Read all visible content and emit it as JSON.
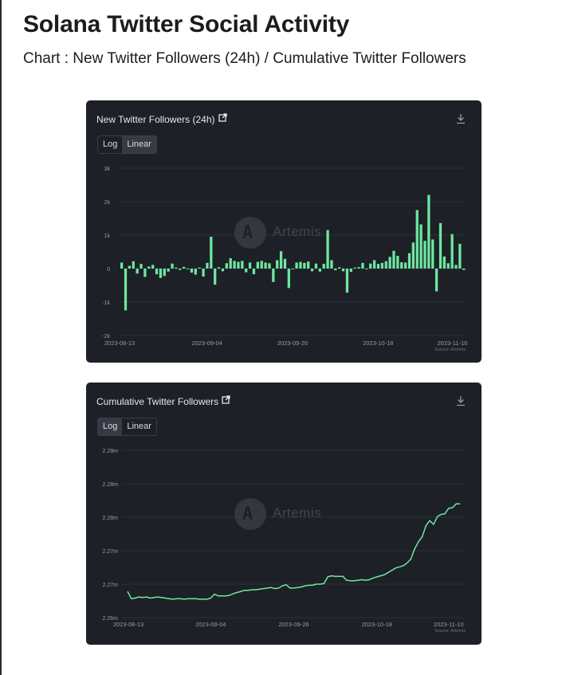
{
  "page": {
    "title": "Solana Twitter Social Activity",
    "subtitle": "Chart : New Twitter Followers (24h) / Cumulative Twitter Followers"
  },
  "colors": {
    "card_bg": "#1d2027",
    "series": "#6ee7a0",
    "grid": "#2c3038",
    "tick_text": "#9a9ca3"
  },
  "icons": [
    "external-link-icon",
    "download-icon",
    "artemis-logo-icon"
  ],
  "watermark": "Artemis",
  "chart_data": [
    {
      "type": "bar",
      "title": "New Twitter Followers (24h)",
      "scale_toggle": {
        "options": [
          "Log",
          "Linear"
        ],
        "selected": "Linear"
      },
      "ylim": [
        -2000,
        3000
      ],
      "y_ticks": [
        "3k",
        "2k",
        "1k",
        "0",
        "-1k",
        "-2k"
      ],
      "y_tick_values": [
        3000,
        2000,
        1000,
        0,
        -1000,
        -2000
      ],
      "x_tick_labels": [
        "2023-08-13",
        "2023-09-04",
        "2023-09-26",
        "2023-10-18",
        "2023-11-10"
      ],
      "x_tick_indices": [
        0,
        22,
        44,
        66,
        89
      ],
      "source": "Source: Artemis",
      "grid": true,
      "values": [
        180,
        -1250,
        80,
        220,
        -150,
        140,
        -250,
        60,
        110,
        -170,
        -280,
        -220,
        -90,
        150,
        30,
        -40,
        50,
        -20,
        -120,
        -180,
        30,
        -240,
        170,
        950,
        -480,
        40,
        -80,
        160,
        310,
        230,
        200,
        230,
        -110,
        180,
        -170,
        200,
        230,
        180,
        160,
        -400,
        250,
        520,
        290,
        -580,
        -20,
        180,
        200,
        170,
        210,
        -80,
        150,
        -90,
        140,
        1150,
        250,
        -50,
        40,
        -80,
        -720,
        -100,
        30,
        40,
        170,
        -20,
        150,
        250,
        140,
        170,
        220,
        350,
        530,
        380,
        190,
        180,
        460,
        780,
        1750,
        1320,
        830,
        2200,
        870,
        -680,
        1360,
        360,
        160,
        1030,
        110,
        740,
        -40
      ]
    },
    {
      "type": "line",
      "title": "Cumulative Twitter Followers",
      "scale_toggle": {
        "options": [
          "Log",
          "Linear"
        ],
        "selected": "Log"
      },
      "y_ticks": [
        "2.29m",
        "2.28m",
        "2.28m",
        "2.27m",
        "2.27m",
        "2.26m"
      ],
      "x_tick_labels": [
        "2023-08-13",
        "2023-09-04",
        "2023-09-26",
        "2023-10-18",
        "2023-11-10"
      ],
      "x_tick_indices": [
        0,
        22,
        44,
        66,
        89
      ],
      "source": "Source: Artemis",
      "grid": true,
      "ylim": [
        2262000,
        2292000
      ],
      "values": [
        2266700,
        2265400,
        2265500,
        2265700,
        2265600,
        2265700,
        2265500,
        2265600,
        2265700,
        2265600,
        2265500,
        2265400,
        2265300,
        2265400,
        2265400,
        2265300,
        2265400,
        2265400,
        2265400,
        2265300,
        2265300,
        2265300,
        2265500,
        2266200,
        2265900,
        2265900,
        2265900,
        2266000,
        2266300,
        2266500,
        2266700,
        2266900,
        2266900,
        2267000,
        2267000,
        2267100,
        2267200,
        2267300,
        2267400,
        2267200,
        2267300,
        2267700,
        2267900,
        2267300,
        2267300,
        2267400,
        2267500,
        2267700,
        2267800,
        2267800,
        2268000,
        2268000,
        2268100,
        2269300,
        2269500,
        2269400,
        2269400,
        2269400,
        2268700,
        2268600,
        2268600,
        2268700,
        2268800,
        2268700,
        2268800,
        2269100,
        2269300,
        2269500,
        2269700,
        2270100,
        2270500,
        2270900,
        2271100,
        2271300,
        2271800,
        2272500,
        2274300,
        2275600,
        2276500,
        2278500,
        2279400,
        2278700,
        2280100,
        2280500,
        2280600,
        2281600,
        2281700,
        2282400,
        2282400
      ]
    }
  ]
}
